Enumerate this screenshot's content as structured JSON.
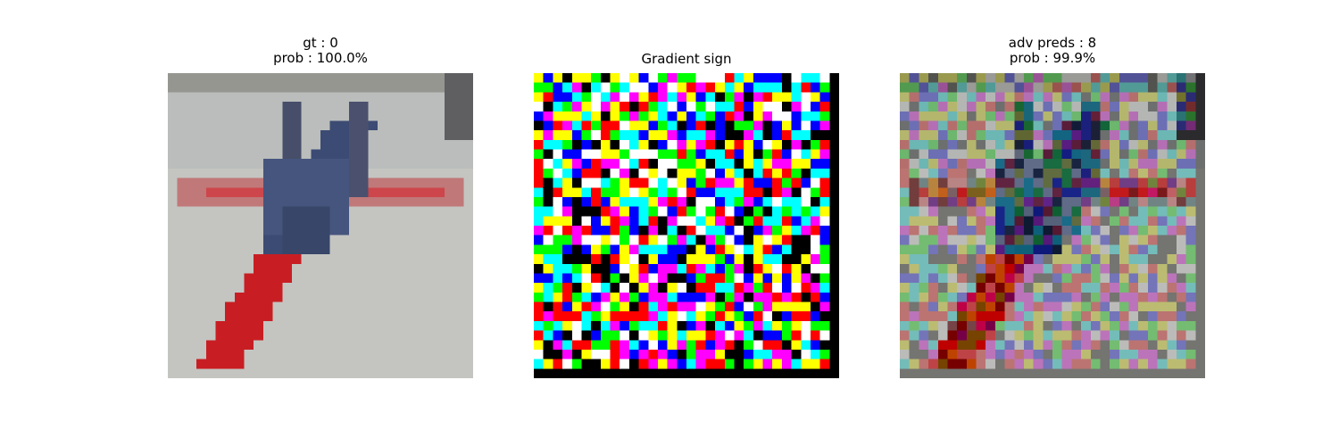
{
  "panels": [
    {
      "title_line1": "gt : 0",
      "title_line2": "prob : 100.0%",
      "image": "airplane-photo"
    },
    {
      "title_line1": "Gradient sign",
      "title_line2": "",
      "image": "gradient-sign-noise"
    },
    {
      "title_line1": "adv preds : 8",
      "title_line2": "prob : 99.9%",
      "image": "adversarial-airplane"
    }
  ],
  "palette": {
    "noise_colors": [
      "#ff0000",
      "#00ff00",
      "#0000ff",
      "#00ffff",
      "#ff00ff",
      "#ffff00",
      "#ffffff",
      "#000000"
    ],
    "background": "#c9cac7",
    "plane_red": "#c6262a",
    "plane_blue": "#3b4a72"
  }
}
